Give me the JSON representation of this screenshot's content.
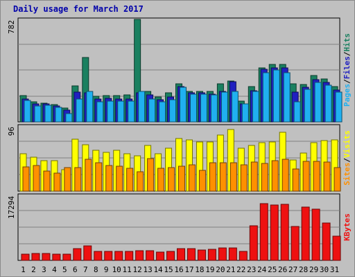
{
  "title": "Daily usage for March 2017",
  "colors": {
    "hits": "#1a8060",
    "files": "#2020c0",
    "pages": "#20b0f0",
    "visits": "#ffff00",
    "sites": "#ff9000",
    "kbytes": "#ee1111",
    "weekend_day_label": "#1a8060",
    "weekday_label": "#000000",
    "background": "#c0c0c0"
  },
  "chart_data": [
    {
      "type": "bar",
      "panel": "hits-files-pages",
      "ylabel_max": "782",
      "ylim": [
        0,
        782
      ],
      "legend": [
        "Pages",
        "/",
        "Files",
        "/",
        "Hits"
      ],
      "categories": [
        "1",
        "2",
        "3",
        "4",
        "5",
        "6",
        "7",
        "8",
        "9",
        "10",
        "11",
        "12",
        "13",
        "14",
        "15",
        "16",
        "17",
        "18",
        "19",
        "20",
        "21",
        "22",
        "23",
        "24",
        "25",
        "26",
        "27",
        "28",
        "29",
        "30",
        "31"
      ],
      "weekend": [
        false,
        false,
        false,
        true,
        true,
        false,
        false,
        false,
        false,
        false,
        true,
        true,
        false,
        false,
        false,
        false,
        false,
        true,
        true,
        false,
        false,
        false,
        false,
        false,
        true,
        true,
        false,
        false,
        false,
        false,
        false
      ],
      "series": [
        {
          "name": "Hits",
          "values": [
            200,
            155,
            145,
            130,
            105,
            275,
            490,
            195,
            200,
            200,
            205,
            780,
            235,
            190,
            220,
            290,
            235,
            230,
            230,
            290,
            310,
            160,
            270,
            410,
            440,
            440,
            290,
            285,
            355,
            325,
            270
          ]
        },
        {
          "name": "Files",
          "values": [
            175,
            135,
            135,
            120,
            90,
            225,
            220,
            175,
            180,
            175,
            175,
            220,
            205,
            170,
            190,
            270,
            220,
            220,
            210,
            235,
            305,
            140,
            240,
            400,
            410,
            410,
            225,
            265,
            320,
            300,
            245
          ]
        },
        {
          "name": "Pages",
          "values": [
            165,
            120,
            125,
            110,
            65,
            175,
            230,
            155,
            160,
            160,
            160,
            230,
            175,
            155,
            170,
            265,
            210,
            210,
            205,
            225,
            235,
            135,
            235,
            375,
            395,
            375,
            155,
            250,
            300,
            280,
            225
          ]
        }
      ]
    },
    {
      "type": "bar",
      "panel": "visits-sites",
      "ylabel_max": "96",
      "ylim": [
        0,
        96
      ],
      "legend": [
        "Sites",
        "/",
        "Visits"
      ],
      "categories": [
        "1",
        "2",
        "3",
        "4",
        "5",
        "6",
        "7",
        "8",
        "9",
        "10",
        "11",
        "12",
        "13",
        "14",
        "15",
        "16",
        "17",
        "18",
        "19",
        "20",
        "21",
        "22",
        "23",
        "24",
        "25",
        "26",
        "27",
        "28",
        "29",
        "30",
        "31"
      ],
      "series": [
        {
          "name": "Visits",
          "values": [
            55,
            50,
            45,
            45,
            32,
            77,
            68,
            60,
            57,
            60,
            55,
            52,
            67,
            55,
            63,
            78,
            76,
            72,
            72,
            83,
            91,
            63,
            67,
            71,
            72,
            87,
            46,
            56,
            71,
            75,
            76
          ]
        },
        {
          "name": "Sites",
          "values": [
            36,
            38,
            30,
            27,
            35,
            35,
            47,
            42,
            38,
            37,
            34,
            29,
            48,
            34,
            35,
            37,
            39,
            31,
            42,
            42,
            42,
            39,
            43,
            41,
            45,
            47,
            33,
            44,
            44,
            43,
            35
          ]
        }
      ]
    },
    {
      "type": "bar",
      "panel": "kbytes",
      "ylabel_max": "17294",
      "ylim": [
        0,
        20300
      ],
      "legend": [
        "KBytes"
      ],
      "categories": [
        "1",
        "2",
        "3",
        "4",
        "5",
        "6",
        "7",
        "8",
        "9",
        "10",
        "11",
        "12",
        "13",
        "14",
        "15",
        "16",
        "17",
        "18",
        "19",
        "20",
        "21",
        "22",
        "23",
        "24",
        "25",
        "26",
        "27",
        "28",
        "29",
        "30",
        "31"
      ],
      "series": [
        {
          "name": "KBytes",
          "values": [
            2000,
            2200,
            2100,
            2000,
            1900,
            3700,
            4600,
            2700,
            2900,
            2900,
            2800,
            3100,
            3100,
            2600,
            2900,
            3600,
            3600,
            3300,
            3500,
            3900,
            3900,
            2800,
            10900,
            17800,
            17200,
            17600,
            10600,
            16600,
            15900,
            11600,
            7600
          ]
        }
      ]
    }
  ]
}
